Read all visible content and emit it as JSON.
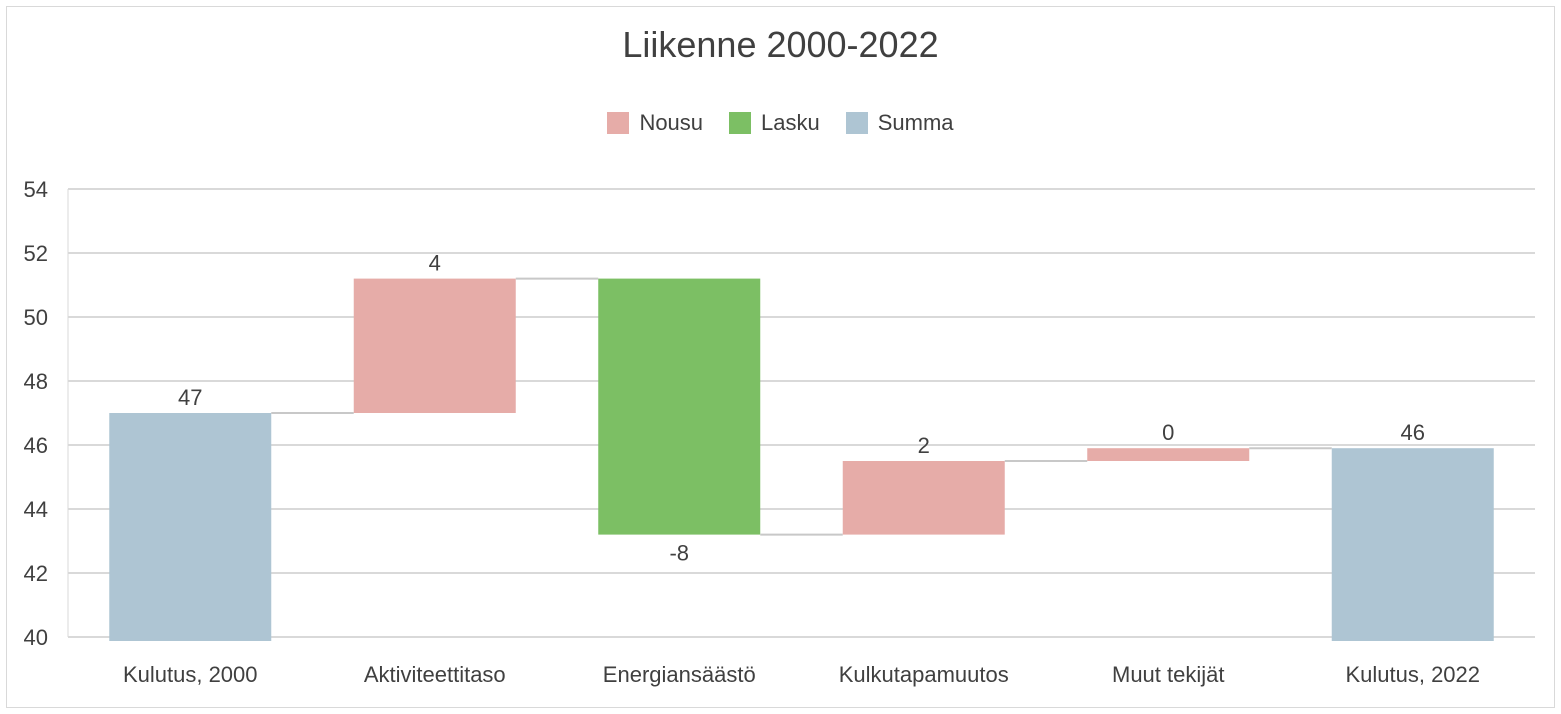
{
  "chart_data": {
    "type": "waterfall",
    "title": "Liikenne 2000-2022",
    "xlabel": "",
    "ylabel": "",
    "ylim": [
      40,
      54
    ],
    "yticks": [
      40,
      42,
      44,
      46,
      48,
      50,
      52,
      54
    ],
    "grid": true,
    "legend_position": "top",
    "legend": [
      {
        "name": "Nousu",
        "color": "#e6aca8"
      },
      {
        "name": "Lasku",
        "color": "#7cbf64"
      },
      {
        "name": "Summa",
        "color": "#aec5d3"
      }
    ],
    "categories": [
      "Kulutus, 2000",
      "Aktiviteettitaso",
      "Energiansäästö",
      "Kulkutapamuutos",
      "Muut tekijät",
      "Kulutus, 2022"
    ],
    "bars": [
      {
        "category": "Kulutus, 2000",
        "kind": "Summa",
        "start": 40,
        "end": 47.0,
        "label": "47"
      },
      {
        "category": "Aktiviteettitaso",
        "kind": "Nousu",
        "start": 47.0,
        "end": 51.2,
        "label": "4"
      },
      {
        "category": "Energiansäästö",
        "kind": "Lasku",
        "start": 51.2,
        "end": 43.2,
        "label": "-8"
      },
      {
        "category": "Kulkutapamuutos",
        "kind": "Nousu",
        "start": 43.2,
        "end": 45.5,
        "label": "2"
      },
      {
        "category": "Muut tekijät",
        "kind": "Nousu",
        "start": 45.5,
        "end": 45.9,
        "label": "0"
      },
      {
        "category": "Kulutus, 2022",
        "kind": "Summa",
        "start": 40,
        "end": 45.9,
        "label": "46"
      }
    ]
  }
}
